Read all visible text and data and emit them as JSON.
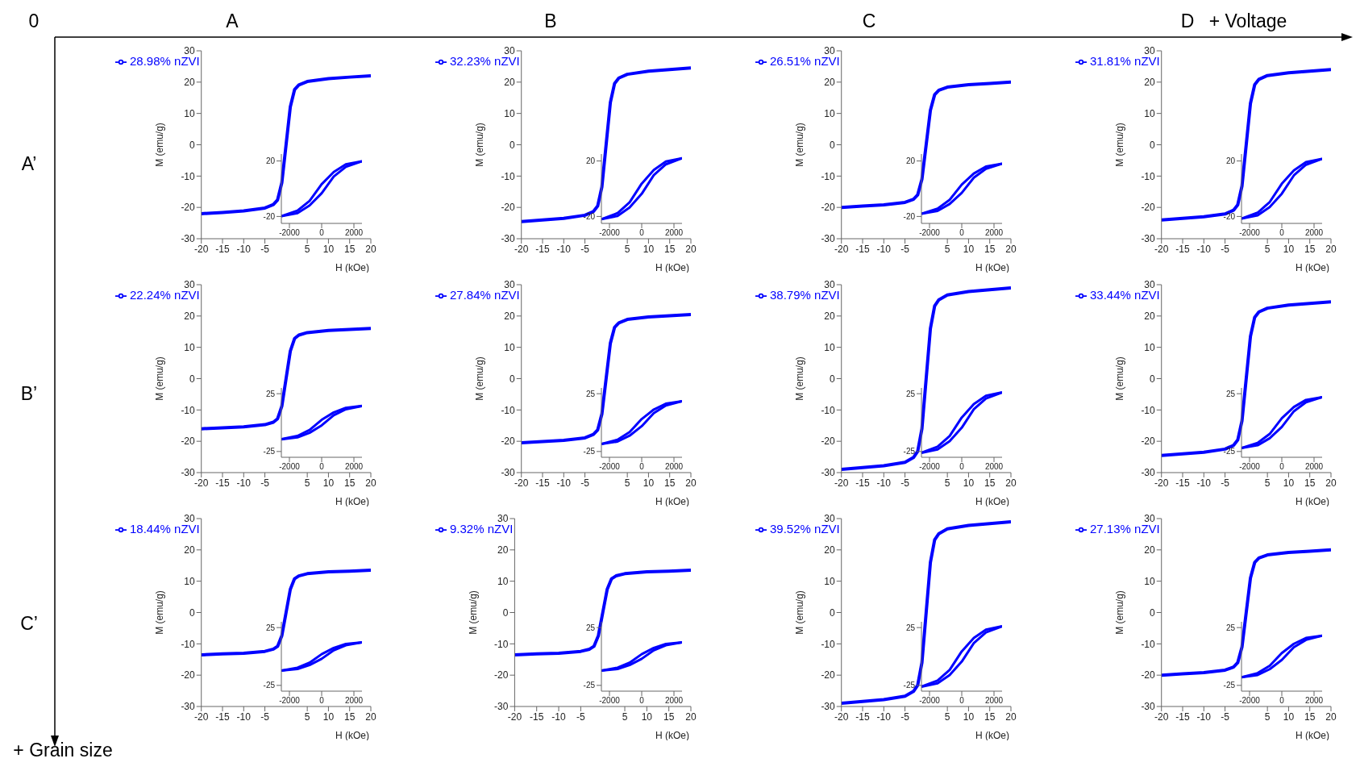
{
  "chart_data": [
    {
      "type": "other",
      "annotations": [
        "0",
        "+ Voltage",
        "+ Grain size",
        "A",
        "B",
        "C",
        "D",
        "A’",
        "B’",
        "C’"
      ]
    },
    {
      "type": "line",
      "xlabel": "H (kOe)",
      "ylabel": "M (emu/g)",
      "legend": "top left",
      "x": [
        -20,
        -15,
        -10,
        -5,
        -3,
        -2,
        -1,
        0,
        1,
        2,
        3,
        5,
        10,
        15,
        20
      ],
      "xlim": [
        -20,
        20
      ],
      "xticks": [
        -20,
        -15,
        -10,
        -5,
        5,
        10,
        15,
        20
      ],
      "ylim": [
        -30,
        30
      ],
      "yticks": [
        -30,
        -20,
        -10,
        0,
        10,
        20,
        30
      ],
      "series": [
        {
          "name": "28.98% nZVI",
          "color": "#0000ff",
          "values": [
            -22,
            -21.6,
            -21.1,
            -20.2,
            -19.1,
            -17.6,
            -12.1,
            0,
            12.1,
            17.6,
            19.1,
            20.2,
            21.1,
            21.6,
            22
          ]
        }
      ]
    },
    {
      "type": "line",
      "x": [
        -2500,
        -1500,
        -750,
        0,
        750,
        1500,
        2500
      ],
      "xlim": [
        -2500,
        2500
      ],
      "xticks": [
        -2000,
        0,
        2000
      ],
      "ylim": [
        -25,
        25
      ],
      "yticks": [
        -20,
        20
      ],
      "series": [
        {
          "color": "#0000ff",
          "values": [
            -19.8,
            -17.6,
            -12.1,
            -3.3,
            8.8,
            15.8,
            19.8
          ]
        },
        {
          "color": "#0000ff",
          "values": [
            -19.8,
            -15.8,
            -8.8,
            3.3,
            12.1,
            17.6,
            19.8
          ]
        }
      ]
    },
    {
      "type": "line",
      "xlabel": "H (kOe)",
      "ylabel": "M (emu/g)",
      "legend": "top left",
      "x": [
        -20,
        -15,
        -10,
        -5,
        -3,
        -2,
        -1,
        0,
        1,
        2,
        3,
        5,
        10,
        15,
        20
      ],
      "xlim": [
        -20,
        20
      ],
      "xticks": [
        -20,
        -15,
        -10,
        -5,
        5,
        10,
        15,
        20
      ],
      "ylim": [
        -30,
        30
      ],
      "yticks": [
        -30,
        -20,
        -10,
        0,
        10,
        20,
        30
      ],
      "series": [
        {
          "name": "32.23% nZVI",
          "color": "#0000ff",
          "values": [
            -24.5,
            -24,
            -23.5,
            -22.5,
            -21.3,
            -19.6,
            -13.5,
            0,
            13.5,
            19.6,
            21.3,
            22.5,
            23.5,
            24,
            24.5
          ]
        }
      ]
    },
    {
      "type": "line",
      "x": [
        -2500,
        -1500,
        -750,
        0,
        750,
        1500,
        2500
      ],
      "xlim": [
        -2500,
        2500
      ],
      "xticks": [
        -2000,
        0,
        2000
      ],
      "ylim": [
        -25,
        25
      ],
      "yticks": [
        -20,
        20
      ],
      "series": [
        {
          "color": "#0000ff",
          "values": [
            -22,
            -19.6,
            -13.5,
            -3.7,
            9.8,
            17.6,
            22
          ]
        },
        {
          "color": "#0000ff",
          "values": [
            -22,
            -17.6,
            -9.8,
            3.7,
            13.5,
            19.6,
            22
          ]
        }
      ]
    },
    {
      "type": "line",
      "xlabel": "H (kOe)",
      "ylabel": "M (emu/g)",
      "legend": "top left",
      "x": [
        -20,
        -15,
        -10,
        -5,
        -3,
        -2,
        -1,
        0,
        1,
        2,
        3,
        5,
        10,
        15,
        20
      ],
      "xlim": [
        -20,
        20
      ],
      "xticks": [
        -20,
        -15,
        -10,
        -5,
        5,
        10,
        15,
        20
      ],
      "ylim": [
        -30,
        30
      ],
      "yticks": [
        -30,
        -20,
        -10,
        0,
        10,
        20,
        30
      ],
      "series": [
        {
          "name": "26.51% nZVI",
          "color": "#0000ff",
          "values": [
            -20,
            -19.6,
            -19.2,
            -18.4,
            -17.4,
            -16,
            -11,
            0,
            11,
            16,
            17.4,
            18.4,
            19.2,
            19.6,
            20
          ]
        }
      ]
    },
    {
      "type": "line",
      "x": [
        -2500,
        -1500,
        -750,
        0,
        750,
        1500,
        2500
      ],
      "xlim": [
        -2500,
        2500
      ],
      "xticks": [
        -2000,
        0,
        2000
      ],
      "ylim": [
        -25,
        25
      ],
      "yticks": [
        -20,
        20
      ],
      "series": [
        {
          "color": "#0000ff",
          "values": [
            -18,
            -16,
            -11,
            -3,
            8,
            14.4,
            18
          ]
        },
        {
          "color": "#0000ff",
          "values": [
            -18,
            -14.4,
            -8,
            3,
            11,
            16,
            18
          ]
        }
      ]
    },
    {
      "type": "line",
      "xlabel": "H (kOe)",
      "ylabel": "M (emu/g)",
      "legend": "top left",
      "x": [
        -20,
        -15,
        -10,
        -5,
        -3,
        -2,
        -1,
        0,
        1,
        2,
        3,
        5,
        10,
        15,
        20
      ],
      "xlim": [
        -20,
        20
      ],
      "xticks": [
        -20,
        -15,
        -10,
        -5,
        5,
        10,
        15,
        20
      ],
      "ylim": [
        -30,
        30
      ],
      "yticks": [
        -30,
        -20,
        -10,
        0,
        10,
        20,
        30
      ],
      "series": [
        {
          "name": "31.81% nZVI",
          "color": "#0000ff",
          "values": [
            -24,
            -23.5,
            -23,
            -22.1,
            -20.9,
            -19.2,
            -13.2,
            0,
            13.2,
            19.2,
            20.9,
            22.1,
            23,
            23.5,
            24
          ]
        }
      ]
    },
    {
      "type": "line",
      "x": [
        -2500,
        -1500,
        -750,
        0,
        750,
        1500,
        2500
      ],
      "xlim": [
        -2500,
        2500
      ],
      "xticks": [
        -2000,
        0,
        2000
      ],
      "ylim": [
        -25,
        25
      ],
      "yticks": [
        -20,
        20
      ],
      "series": [
        {
          "color": "#0000ff",
          "values": [
            -21.6,
            -19.2,
            -13.2,
            -3.6,
            9.6,
            17.3,
            21.6
          ]
        },
        {
          "color": "#0000ff",
          "values": [
            -21.6,
            -17.3,
            -9.6,
            3.6,
            13.2,
            19.2,
            21.6
          ]
        }
      ]
    },
    {
      "type": "line",
      "xlabel": "H (kOe)",
      "ylabel": "M (emu/g)",
      "legend": "top left",
      "x": [
        -20,
        -15,
        -10,
        -5,
        -3,
        -2,
        -1,
        0,
        1,
        2,
        3,
        5,
        10,
        15,
        20
      ],
      "xlim": [
        -20,
        20
      ],
      "xticks": [
        -20,
        -15,
        -10,
        -5,
        5,
        10,
        15,
        20
      ],
      "ylim": [
        -30,
        30
      ],
      "yticks": [
        -30,
        -20,
        -10,
        0,
        10,
        20,
        30
      ],
      "series": [
        {
          "name": "22.24% nZVI",
          "color": "#0000ff",
          "values": [
            -16,
            -15.7,
            -15.4,
            -14.7,
            -13.9,
            -12.8,
            -8.8,
            0,
            8.8,
            12.8,
            13.9,
            14.7,
            15.4,
            15.7,
            16
          ]
        }
      ]
    },
    {
      "type": "line",
      "x": [
        -2500,
        -1500,
        -750,
        0,
        750,
        1500,
        2500
      ],
      "xlim": [
        -2500,
        2500
      ],
      "xticks": [
        -2000,
        0,
        2000
      ],
      "ylim": [
        -30,
        30
      ],
      "yticks": [
        -25,
        25
      ],
      "series": [
        {
          "color": "#0000ff",
          "values": [
            -14.4,
            -12.8,
            -8.8,
            -2.4,
            6.4,
            11.5,
            14.4
          ]
        },
        {
          "color": "#0000ff",
          "values": [
            -14.4,
            -11.5,
            -6.4,
            2.4,
            8.8,
            12.8,
            14.4
          ]
        }
      ]
    },
    {
      "type": "line",
      "xlabel": "H (kOe)",
      "ylabel": "M (emu/g)",
      "legend": "top left",
      "x": [
        -20,
        -15,
        -10,
        -5,
        -3,
        -2,
        -1,
        0,
        1,
        2,
        3,
        5,
        10,
        15,
        20
      ],
      "xlim": [
        -20,
        20
      ],
      "xticks": [
        -20,
        -15,
        -10,
        -5,
        5,
        10,
        15,
        20
      ],
      "ylim": [
        -30,
        30
      ],
      "yticks": [
        -30,
        -20,
        -10,
        0,
        10,
        20,
        30
      ],
      "series": [
        {
          "name": "27.84% nZVI",
          "color": "#0000ff",
          "values": [
            -20.5,
            -20.1,
            -19.7,
            -18.9,
            -17.8,
            -16.4,
            -11.3,
            0,
            11.3,
            16.4,
            17.8,
            18.9,
            19.7,
            20.1,
            20.5
          ]
        }
      ]
    },
    {
      "type": "line",
      "x": [
        -2500,
        -1500,
        -750,
        0,
        750,
        1500,
        2500
      ],
      "xlim": [
        -2500,
        2500
      ],
      "xticks": [
        -2000,
        0,
        2000
      ],
      "ylim": [
        -30,
        30
      ],
      "yticks": [
        -25,
        25
      ],
      "series": [
        {
          "color": "#0000ff",
          "values": [
            -18.5,
            -16.4,
            -11.3,
            -3.1,
            8.2,
            14.8,
            18.5
          ]
        },
        {
          "color": "#0000ff",
          "values": [
            -18.5,
            -14.8,
            -8.2,
            3.1,
            11.3,
            16.4,
            18.5
          ]
        }
      ]
    },
    {
      "type": "line",
      "xlabel": "H (kOe)",
      "ylabel": "M (emu/g)",
      "legend": "top left",
      "x": [
        -20,
        -15,
        -10,
        -5,
        -3,
        -2,
        -1,
        0,
        1,
        2,
        3,
        5,
        10,
        15,
        20
      ],
      "xlim": [
        -20,
        20
      ],
      "xticks": [
        -20,
        -15,
        -10,
        -5,
        5,
        10,
        15,
        20
      ],
      "ylim": [
        -30,
        30
      ],
      "yticks": [
        -30,
        -20,
        -10,
        0,
        10,
        20,
        30
      ],
      "series": [
        {
          "name": "38.79% nZVI",
          "color": "#0000ff",
          "values": [
            -29,
            -28.4,
            -27.8,
            -26.7,
            -25.2,
            -23.2,
            -16,
            0,
            16,
            23.2,
            25.2,
            26.7,
            27.8,
            28.4,
            29
          ]
        }
      ]
    },
    {
      "type": "line",
      "x": [
        -2500,
        -1500,
        -750,
        0,
        750,
        1500,
        2500
      ],
      "xlim": [
        -2500,
        2500
      ],
      "xticks": [
        -2000,
        0,
        2000
      ],
      "ylim": [
        -30,
        30
      ],
      "yticks": [
        -25,
        25
      ],
      "series": [
        {
          "color": "#0000ff",
          "values": [
            -26.1,
            -23.2,
            -16,
            -4.4,
            11.6,
            20.9,
            26.1
          ]
        },
        {
          "color": "#0000ff",
          "values": [
            -26.1,
            -20.9,
            -11.6,
            4.4,
            16,
            23.2,
            26.1
          ]
        }
      ]
    },
    {
      "type": "line",
      "xlabel": "H (kOe)",
      "ylabel": "M (emu/g)",
      "legend": "top left",
      "x": [
        -20,
        -15,
        -10,
        -5,
        -3,
        -2,
        -1,
        0,
        1,
        2,
        3,
        5,
        10,
        15,
        20
      ],
      "xlim": [
        -20,
        20
      ],
      "xticks": [
        -20,
        -15,
        -10,
        -5,
        5,
        10,
        15,
        20
      ],
      "ylim": [
        -30,
        30
      ],
      "yticks": [
        -30,
        -20,
        -10,
        0,
        10,
        20,
        30
      ],
      "series": [
        {
          "name": "33.44% nZVI",
          "color": "#0000ff",
          "values": [
            -24.5,
            -24,
            -23.5,
            -22.5,
            -21.3,
            -19.6,
            -13.5,
            0,
            13.5,
            19.6,
            21.3,
            22.5,
            23.5,
            24,
            24.5
          ]
        }
      ]
    },
    {
      "type": "line",
      "x": [
        -2500,
        -1500,
        -750,
        0,
        750,
        1500,
        2500
      ],
      "xlim": [
        -2500,
        2500
      ],
      "xticks": [
        -2000,
        0,
        2000
      ],
      "ylim": [
        -30,
        30
      ],
      "yticks": [
        -25,
        25
      ],
      "series": [
        {
          "color": "#0000ff",
          "values": [
            -22,
            -19.6,
            -13.5,
            -3.7,
            9.8,
            17.6,
            22
          ]
        },
        {
          "color": "#0000ff",
          "values": [
            -22,
            -17.6,
            -9.8,
            3.7,
            13.5,
            19.6,
            22
          ]
        }
      ]
    },
    {
      "type": "line",
      "xlabel": "H (kOe)",
      "ylabel": "M (emu/g)",
      "legend": "top left",
      "x": [
        -20,
        -15,
        -10,
        -5,
        -3,
        -2,
        -1,
        0,
        1,
        2,
        3,
        5,
        10,
        15,
        20
      ],
      "xlim": [
        -20,
        20
      ],
      "xticks": [
        -20,
        -15,
        -10,
        -5,
        5,
        10,
        15,
        20
      ],
      "ylim": [
        -30,
        30
      ],
      "yticks": [
        -30,
        -20,
        -10,
        0,
        10,
        20,
        30
      ],
      "series": [
        {
          "name": "18.44% nZVI",
          "color": "#0000ff",
          "values": [
            -13.5,
            -13.2,
            -13,
            -12.4,
            -11.7,
            -10.8,
            -7.4,
            0,
            7.4,
            10.8,
            11.7,
            12.4,
            13,
            13.2,
            13.5
          ]
        }
      ]
    },
    {
      "type": "line",
      "x": [
        -2500,
        -1500,
        -750,
        0,
        750,
        1500,
        2500
      ],
      "xlim": [
        -2500,
        2500
      ],
      "xticks": [
        -2000,
        0,
        2000
      ],
      "ylim": [
        -30,
        30
      ],
      "yticks": [
        -25,
        25
      ],
      "series": [
        {
          "color": "#0000ff",
          "values": [
            -12.2,
            -10.8,
            -7.4,
            -2,
            5.4,
            9.7,
            12.2
          ]
        },
        {
          "color": "#0000ff",
          "values": [
            -12.2,
            -9.7,
            -5.4,
            2,
            7.4,
            10.8,
            12.2
          ]
        }
      ]
    },
    {
      "type": "line",
      "xlabel": "H (kOe)",
      "ylabel": "M (emu/g)",
      "legend": "top left",
      "x": [
        -20,
        -15,
        -10,
        -5,
        -3,
        -2,
        -1,
        0,
        1,
        2,
        3,
        5,
        10,
        15,
        20
      ],
      "xlim": [
        -20,
        20
      ],
      "xticks": [
        -20,
        -15,
        -10,
        -5,
        5,
        10,
        15,
        20
      ],
      "ylim": [
        -30,
        30
      ],
      "yticks": [
        -30,
        -20,
        -10,
        0,
        10,
        20,
        30
      ],
      "series": [
        {
          "name": "9.32% nZVI",
          "color": "#0000ff",
          "values": [
            -13.5,
            -13.2,
            -13,
            -12.4,
            -11.7,
            -10.8,
            -7.4,
            0,
            7.4,
            10.8,
            11.7,
            12.4,
            13,
            13.2,
            13.5
          ]
        }
      ]
    },
    {
      "type": "line",
      "x": [
        -2500,
        -1500,
        -750,
        0,
        750,
        1500,
        2500
      ],
      "xlim": [
        -2500,
        2500
      ],
      "xticks": [
        -2000,
        0,
        2000
      ],
      "ylim": [
        -30,
        30
      ],
      "yticks": [
        -25,
        25
      ],
      "series": [
        {
          "color": "#0000ff",
          "values": [
            -12.2,
            -10.8,
            -7.4,
            -2,
            5.4,
            9.7,
            12.2
          ]
        },
        {
          "color": "#0000ff",
          "values": [
            -12.2,
            -9.7,
            -5.4,
            2,
            7.4,
            10.8,
            12.2
          ]
        }
      ]
    },
    {
      "type": "line",
      "xlabel": "H (kOe)",
      "ylabel": "M (emu/g)",
      "legend": "top left",
      "x": [
        -20,
        -15,
        -10,
        -5,
        -3,
        -2,
        -1,
        0,
        1,
        2,
        3,
        5,
        10,
        15,
        20
      ],
      "xlim": [
        -20,
        20
      ],
      "xticks": [
        -20,
        -15,
        -10,
        -5,
        5,
        10,
        15,
        20
      ],
      "ylim": [
        -30,
        30
      ],
      "yticks": [
        -30,
        -20,
        -10,
        0,
        10,
        20,
        30
      ],
      "series": [
        {
          "name": "39.52% nZVI",
          "color": "#0000ff",
          "values": [
            -29,
            -28.4,
            -27.8,
            -26.7,
            -25.2,
            -23.2,
            -16,
            0,
            16,
            23.2,
            25.2,
            26.7,
            27.8,
            28.4,
            29
          ]
        }
      ]
    },
    {
      "type": "line",
      "x": [
        -2500,
        -1500,
        -750,
        0,
        750,
        1500,
        2500
      ],
      "xlim": [
        -2500,
        2500
      ],
      "xticks": [
        -2000,
        0,
        2000
      ],
      "ylim": [
        -30,
        30
      ],
      "yticks": [
        -25,
        25
      ],
      "series": [
        {
          "color": "#0000ff",
          "values": [
            -26.1,
            -23.2,
            -16,
            -4.4,
            11.6,
            20.9,
            26.1
          ]
        },
        {
          "color": "#0000ff",
          "values": [
            -26.1,
            -20.9,
            -11.6,
            4.4,
            16,
            23.2,
            26.1
          ]
        }
      ]
    },
    {
      "type": "line",
      "xlabel": "H (kOe)",
      "ylabel": "M (emu/g)",
      "legend": "top left",
      "x": [
        -20,
        -15,
        -10,
        -5,
        -3,
        -2,
        -1,
        0,
        1,
        2,
        3,
        5,
        10,
        15,
        20
      ],
      "xlim": [
        -20,
        20
      ],
      "xticks": [
        -20,
        -15,
        -10,
        -5,
        5,
        10,
        15,
        20
      ],
      "ylim": [
        -30,
        30
      ],
      "yticks": [
        -30,
        -20,
        -10,
        0,
        10,
        20,
        30
      ],
      "series": [
        {
          "name": "27.13% nZVI",
          "color": "#0000ff",
          "values": [
            -20,
            -19.6,
            -19.2,
            -18.4,
            -17.4,
            -16,
            -11,
            0,
            11,
            16,
            17.4,
            18.4,
            19.2,
            19.6,
            20
          ]
        }
      ]
    },
    {
      "type": "line",
      "x": [
        -2500,
        -1500,
        -750,
        0,
        750,
        1500,
        2500
      ],
      "xlim": [
        -2500,
        2500
      ],
      "xticks": [
        -2000,
        0,
        2000
      ],
      "ylim": [
        -30,
        30
      ],
      "yticks": [
        -25,
        25
      ],
      "series": [
        {
          "color": "#0000ff",
          "values": [
            -18,
            -16,
            -11,
            -3,
            8,
            14.4,
            18
          ]
        },
        {
          "color": "#0000ff",
          "values": [
            -18,
            -14.4,
            -8,
            3,
            11,
            16,
            18
          ]
        }
      ]
    }
  ]
}
